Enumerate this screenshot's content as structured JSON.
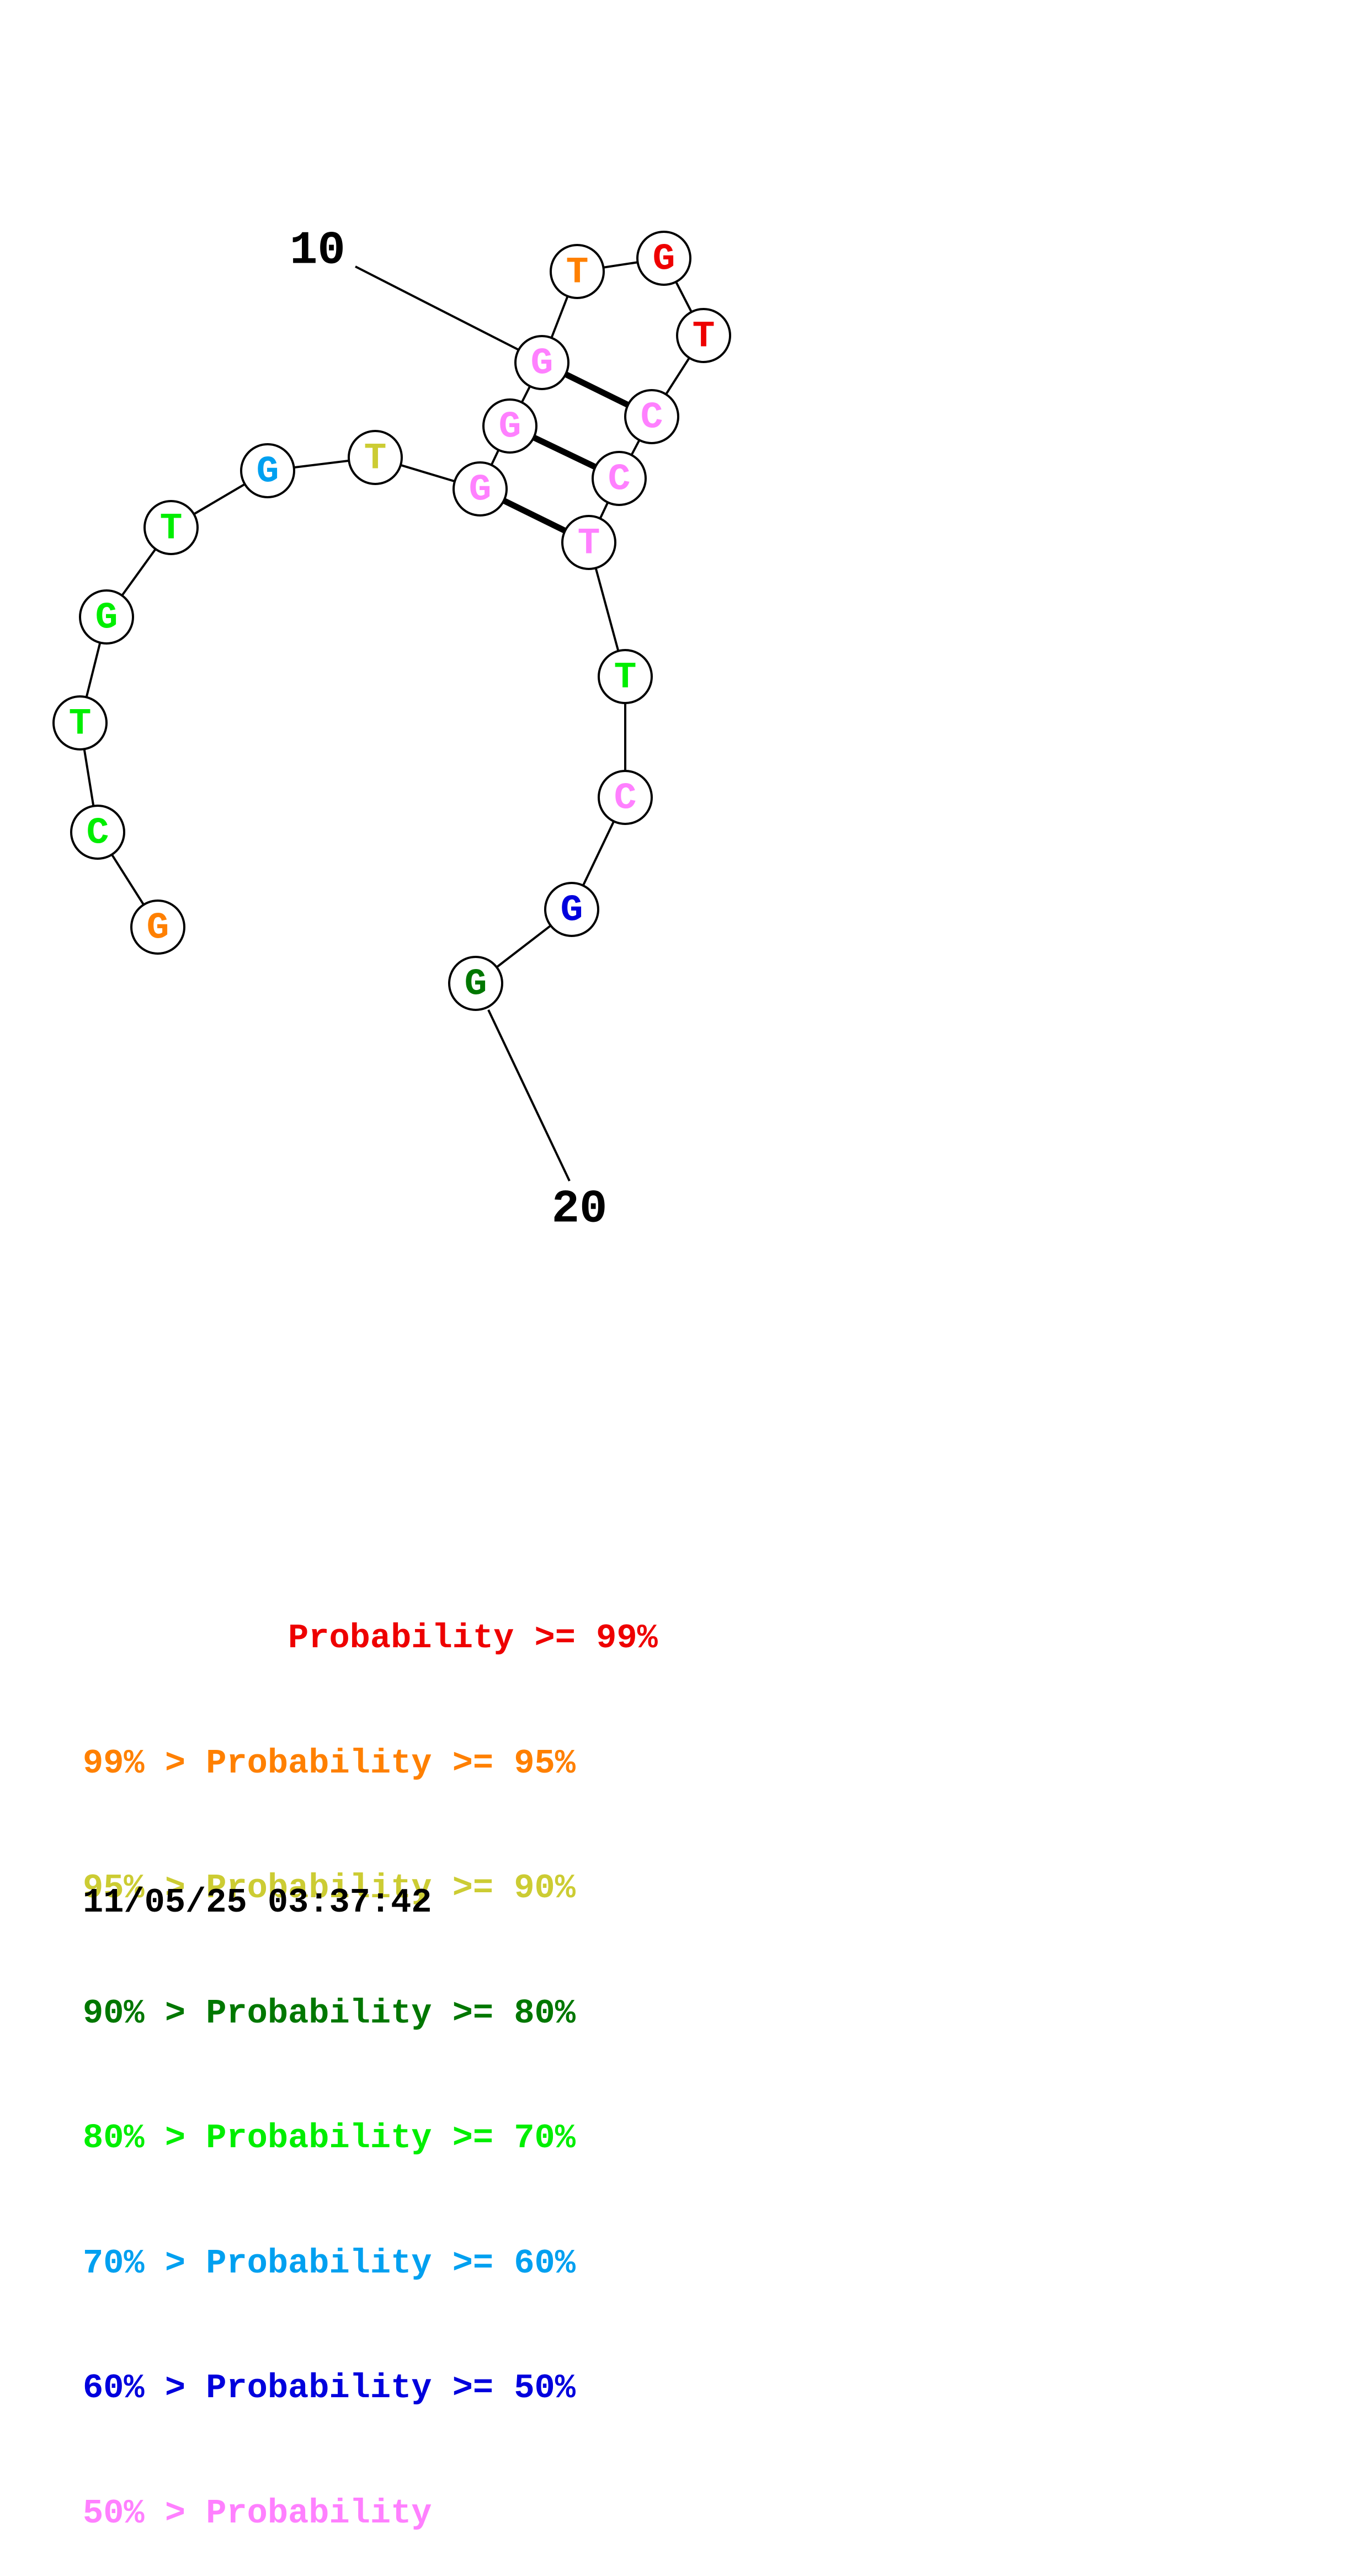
{
  "diagram": {
    "type": "rna-secondary-structure",
    "nucleotides": [
      {
        "index": 1,
        "base": "G",
        "color": "#ff8000"
      },
      {
        "index": 2,
        "base": "C",
        "color": "#00ee00"
      },
      {
        "index": 3,
        "base": "T",
        "color": "#00ee00"
      },
      {
        "index": 4,
        "base": "G",
        "color": "#00ee00"
      },
      {
        "index": 5,
        "base": "T",
        "color": "#00ee00"
      },
      {
        "index": 6,
        "base": "G",
        "color": "#00a0f0"
      },
      {
        "index": 7,
        "base": "T",
        "color": "#cccc33"
      },
      {
        "index": 8,
        "base": "G",
        "color": "#ff80ff"
      },
      {
        "index": 9,
        "base": "G",
        "color": "#ff80ff"
      },
      {
        "index": 10,
        "base": "G",
        "color": "#ff80ff"
      },
      {
        "index": 11,
        "base": "T",
        "color": "#ff8000"
      },
      {
        "index": 12,
        "base": "G",
        "color": "#ee0000"
      },
      {
        "index": 13,
        "base": "T",
        "color": "#ee0000"
      },
      {
        "index": 14,
        "base": "C",
        "color": "#ff80ff"
      },
      {
        "index": 15,
        "base": "C",
        "color": "#ff80ff"
      },
      {
        "index": 16,
        "base": "T",
        "color": "#ff80ff"
      },
      {
        "index": 17,
        "base": "T",
        "color": "#00ee00"
      },
      {
        "index": 18,
        "base": "C",
        "color": "#ff80ff"
      },
      {
        "index": 19,
        "base": "G",
        "color": "#0000dd"
      },
      {
        "index": 20,
        "base": "G",
        "color": "#007700"
      }
    ],
    "pairs": [
      [
        10,
        14
      ],
      [
        9,
        15
      ],
      [
        8,
        16
      ]
    ],
    "labels": [
      {
        "text": "10",
        "nucleotide": 10
      },
      {
        "text": "20",
        "nucleotide": 20
      }
    ]
  },
  "legend": [
    {
      "text": "          Probability >= 99%",
      "prefix": "",
      "color": "#ee0000"
    },
    {
      "text": "99% > Probability >= 95%",
      "color": "#ff8000"
    },
    {
      "text": "95% > Probability >= 90%",
      "color": "#cccc33"
    },
    {
      "text": "90% > Probability >= 80%",
      "color": "#007700"
    },
    {
      "text": "80% > Probability >= 70%",
      "color": "#00ee00"
    },
    {
      "text": "70% > Probability >= 60%",
      "color": "#00a0f0"
    },
    {
      "text": "60% > Probability >= 50%",
      "color": "#0000dd"
    },
    {
      "text": "50% > Probability",
      "color": "#ff80ff"
    }
  ],
  "timestamp": "11/05/25 03:37:42"
}
